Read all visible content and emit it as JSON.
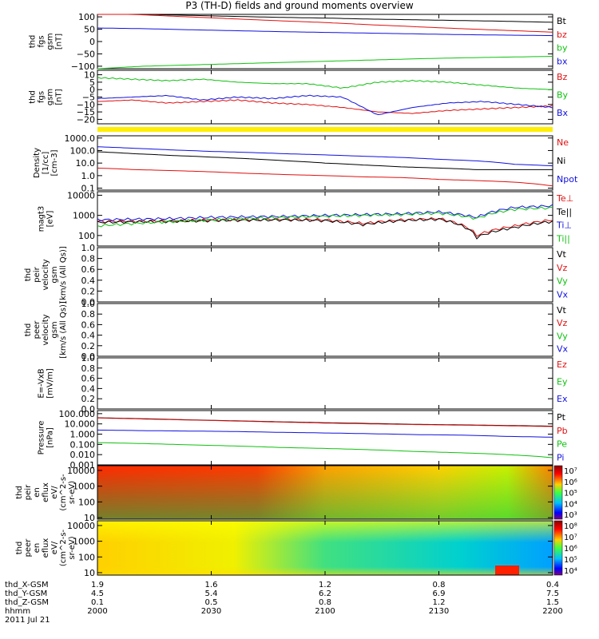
{
  "title": "P3 (TH-D) fields and ground moments overview",
  "date": "2011 Jul 21",
  "colors": {
    "black": "#000000",
    "red": "#e01010",
    "green": "#10c010",
    "blue": "#1010e0",
    "yellow": "#ffee00"
  },
  "chart_data": {
    "type": "line",
    "x": {
      "ticks": [
        "2000",
        "2030",
        "2100",
        "2130",
        "2200"
      ]
    },
    "ephemeris": [
      {
        "label": "thd_X-GSM",
        "values": [
          "1.9",
          "1.6",
          "1.2",
          "0.8",
          "0.4"
        ]
      },
      {
        "label": "thd_Y-GSM",
        "values": [
          "4.5",
          "5.4",
          "6.2",
          "6.9",
          "7.5"
        ]
      },
      {
        "label": "thd_Z-GSM",
        "values": [
          "0.1",
          "0.5",
          "0.8",
          "1.2",
          "1.5"
        ]
      },
      {
        "label": "hhmm",
        "values": [
          "2000",
          "2030",
          "2100",
          "2130",
          "2200"
        ]
      }
    ],
    "panels": [
      {
        "ylabel": [
          "thd",
          "fgs",
          "gsm",
          "[nT]"
        ],
        "scale": "linear",
        "ylim": [
          -110,
          110
        ],
        "yticks": [
          {
            "v": 100,
            "t": "100"
          },
          {
            "v": 50,
            "t": "50"
          },
          {
            "v": 0,
            "t": "0"
          },
          {
            "v": -50,
            "t": "−50"
          },
          {
            "v": -100,
            "t": "−100"
          }
        ],
        "series": [
          {
            "name": "Bt",
            "color": "black",
            "values": [
              113,
              110,
              106,
              102,
              98,
              95,
              91,
              88,
              85,
              82,
              78
            ]
          },
          {
            "name": "bz",
            "color": "red",
            "values": [
              115,
              108,
              100,
              92,
              84,
              77,
              68,
              60,
              52,
              45,
              38
            ]
          },
          {
            "name": "by",
            "color": "green",
            "values": [
              -110,
              -100,
              -95,
              -90,
              -85,
              -80,
              -75,
              -70,
              -66,
              -63,
              -60
            ]
          },
          {
            "name": "bx",
            "color": "blue",
            "values": [
              55,
              52,
              48,
              44,
              40,
              37,
              34,
              31,
              28,
              26,
              24
            ]
          }
        ]
      },
      {
        "ylabel": [
          "thd",
          "fgs",
          "gsm",
          "[nT]"
        ],
        "scale": "linear",
        "ylim": [
          -23,
          13
        ],
        "yticks": [
          {
            "v": 10,
            "t": "10"
          },
          {
            "v": 5,
            "t": "5"
          },
          {
            "v": 0,
            "t": "0"
          },
          {
            "v": -5,
            "t": "−5"
          },
          {
            "v": -10,
            "t": "−10"
          },
          {
            "v": -15,
            "t": "−15"
          },
          {
            "v": -20,
            "t": "−20"
          }
        ],
        "series": [
          {
            "name": "Bz",
            "color": "red",
            "values": [
              -8,
              -7,
              -9,
              -8,
              -7,
              -9,
              -10,
              -12,
              -15,
              -16,
              -14,
              -13,
              -12,
              -11
            ]
          },
          {
            "name": "By",
            "color": "green",
            "values": [
              8,
              7,
              6,
              7,
              5,
              4,
              4,
              1,
              5,
              6,
              5,
              3,
              1,
              0
            ]
          },
          {
            "name": "Bx",
            "color": "blue",
            "values": [
              -6,
              -5,
              -4,
              -7,
              -5,
              -6,
              -4,
              -5,
              -17,
              -12,
              -9,
              -8,
              -10,
              -12
            ]
          }
        ]
      },
      {
        "ylabel": [
          "Density",
          "[1/cc]",
          "[cm-3]"
        ],
        "scale": "log",
        "ylim": [
          0.07,
          1500
        ],
        "yticks": [
          {
            "v": 1000,
            "t": "1000.0"
          },
          {
            "v": 100,
            "t": "100.0"
          },
          {
            "v": 10,
            "t": "10.0"
          },
          {
            "v": 1,
            "t": "1.0"
          },
          {
            "v": 0.1,
            "t": "0.1"
          }
        ],
        "series": [
          {
            "name": "Ne",
            "color": "red",
            "values": [
              4,
              3,
              2.5,
              2,
              1.5,
              1.2,
              1,
              0.8,
              0.7,
              0.5,
              0.4,
              0.3,
              0.15
            ]
          },
          {
            "name": "Ni",
            "color": "black",
            "values": [
              80,
              55,
              40,
              30,
              22,
              15,
              10,
              7,
              5,
              4,
              3,
              3,
              3
            ]
          },
          {
            "name": "Npot",
            "color": "blue",
            "values": [
              200,
              150,
              110,
              85,
              70,
              55,
              45,
              35,
              28,
              20,
              15,
              8,
              6
            ]
          }
        ]
      },
      {
        "ylabel": [
          "magt3",
          "[eV]"
        ],
        "scale": "log",
        "ylim": [
          30,
          15000
        ],
        "yticks": [
          {
            "v": 10000,
            "t": "10000"
          },
          {
            "v": 1000,
            "t": "1000"
          },
          {
            "v": 100,
            "t": "100"
          }
        ],
        "series": [
          {
            "name": "Te⊥",
            "color": "red",
            "values": [
              500,
              520,
              550,
              600,
              620,
              650,
              600,
              400,
              600,
              700,
              100,
              300,
              600
            ]
          },
          {
            "name": "Te||",
            "color": "black",
            "values": [
              450,
              480,
              500,
              550,
              580,
              600,
              550,
              350,
              550,
              650,
              80,
              250,
              500
            ]
          },
          {
            "name": "Ti⊥",
            "color": "blue",
            "values": [
              600,
              650,
              700,
              800,
              850,
              900,
              1000,
              1100,
              1200,
              1500,
              800,
              2500,
              3000
            ]
          },
          {
            "name": "Ti||",
            "color": "green",
            "values": [
              300,
              400,
              500,
              600,
              700,
              800,
              900,
              1000,
              1100,
              1300,
              700,
              2000,
              2400
            ]
          }
        ]
      },
      {
        "ylabel": [
          "thd",
          "peir",
          "velocity",
          "gsm",
          "[km/s (All Qs)]"
        ],
        "scale": "linear",
        "ylim": [
          0,
          1
        ],
        "yticks": [
          {
            "v": 1,
            "t": "1.0"
          },
          {
            "v": 0.8,
            "t": "0.8"
          },
          {
            "v": 0.6,
            "t": "0.6"
          },
          {
            "v": 0.4,
            "t": "0.4"
          },
          {
            "v": 0.2,
            "t": "0.2"
          },
          {
            "v": 0,
            "t": "0.0"
          }
        ],
        "legend": [
          {
            "name": "Vt",
            "color": "black"
          },
          {
            "name": "Vz",
            "color": "red"
          },
          {
            "name": "Vy",
            "color": "green"
          },
          {
            "name": "Vx",
            "color": "blue"
          }
        ],
        "series": []
      },
      {
        "ylabel": [
          "thd",
          "peer",
          "velocity",
          "gsm",
          "[km/s (All Qs)]"
        ],
        "scale": "linear",
        "ylim": [
          0,
          1
        ],
        "yticks": [
          {
            "v": 1,
            "t": "1.0"
          },
          {
            "v": 0.8,
            "t": "0.8"
          },
          {
            "v": 0.6,
            "t": "0.6"
          },
          {
            "v": 0.4,
            "t": "0.4"
          },
          {
            "v": 0.2,
            "t": "0.2"
          },
          {
            "v": 0,
            "t": "0.0"
          }
        ],
        "legend": [
          {
            "name": "Vt",
            "color": "black"
          },
          {
            "name": "Vz",
            "color": "red"
          },
          {
            "name": "Vy",
            "color": "green"
          },
          {
            "name": "Vx",
            "color": "blue"
          }
        ],
        "series": []
      },
      {
        "ylabel": [
          "E=-VxB",
          "[mV/m]"
        ],
        "scale": "linear",
        "ylim": [
          0,
          1
        ],
        "yticks": [
          {
            "v": 1,
            "t": "1.0"
          },
          {
            "v": 0.8,
            "t": "0.8"
          },
          {
            "v": 0.6,
            "t": "0.6"
          },
          {
            "v": 0.4,
            "t": "0.4"
          },
          {
            "v": 0.2,
            "t": "0.2"
          },
          {
            "v": 0,
            "t": "0.0"
          }
        ],
        "legend": [
          {
            "name": "Ez",
            "color": "red"
          },
          {
            "name": "Ey",
            "color": "green"
          },
          {
            "name": "Ex",
            "color": "blue"
          }
        ],
        "series": []
      },
      {
        "ylabel": [
          "Pressure",
          "[nPa]"
        ],
        "scale": "log",
        "ylim": [
          0.001,
          200
        ],
        "yticks": [
          {
            "v": 100,
            "t": "100.000"
          },
          {
            "v": 10,
            "t": "10.000"
          },
          {
            "v": 1,
            "t": "1.000"
          },
          {
            "v": 0.1,
            "t": "0.100"
          },
          {
            "v": 0.01,
            "t": "0.010"
          },
          {
            "v": 0.001,
            "t": "0.001"
          }
        ],
        "series": [
          {
            "name": "Pt",
            "color": "black",
            "values": [
              40,
              32,
              25,
              20,
              16,
              13,
              11,
              9,
              8,
              7,
              6
            ]
          },
          {
            "name": "Pb",
            "color": "red",
            "values": [
              38,
              30,
              24,
              19,
              15,
              12,
              10,
              8.5,
              7.5,
              6.5,
              5.5
            ]
          },
          {
            "name": "Pe",
            "color": "green",
            "values": [
              0.15,
              0.12,
              0.09,
              0.07,
              0.05,
              0.04,
              0.03,
              0.02,
              0.015,
              0.01,
              0.005
            ]
          },
          {
            "name": "Pi",
            "color": "blue",
            "values": [
              2.5,
              2.2,
              2,
              1.8,
              1.5,
              1.3,
              1.1,
              0.9,
              0.8,
              0.6,
              0.5
            ]
          }
        ]
      },
      {
        "ylabel": [
          "thd",
          "peir",
          "en",
          "eflux",
          "eV/",
          "(cm^2-s-",
          "sr-eV)"
        ],
        "scale": "log",
        "ylim": [
          8,
          20000
        ],
        "type": "spectrogram",
        "yticks": [
          {
            "v": 10000,
            "t": "10000"
          },
          {
            "v": 1000,
            "t": "1000"
          },
          {
            "v": 100,
            "t": "100"
          },
          {
            "v": 10,
            "t": "10"
          }
        ],
        "colorbar": [
          "10⁷",
          "10⁶",
          "10⁵",
          "10⁴",
          "10³"
        ]
      },
      {
        "ylabel": [
          "thd",
          "peer",
          "en",
          "eflux",
          "eV/",
          "(cm^2-s-",
          "sr-eV)"
        ],
        "scale": "log",
        "ylim": [
          7,
          20000
        ],
        "type": "spectrogram",
        "yticks": [
          {
            "v": 10000,
            "t": "10000"
          },
          {
            "v": 1000,
            "t": "1000"
          },
          {
            "v": 100,
            "t": "100"
          },
          {
            "v": 10,
            "t": "10"
          }
        ],
        "colorbar": [
          "10⁸",
          "10⁷",
          "10⁶",
          "10⁵",
          "10⁴"
        ]
      }
    ]
  }
}
